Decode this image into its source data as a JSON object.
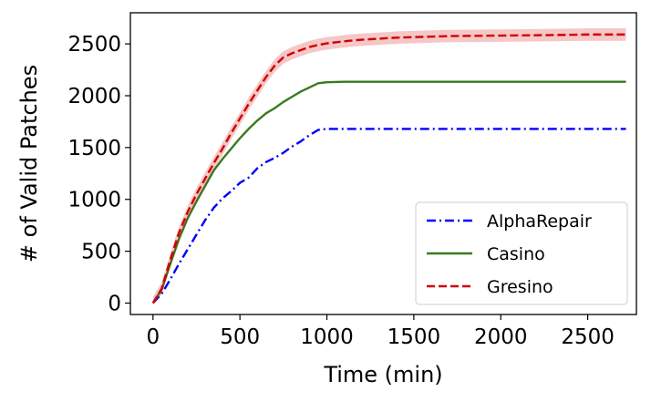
{
  "chart_data": {
    "type": "line",
    "xlabel": "Time (min)",
    "ylabel": "# of Valid Patches",
    "xlim": [
      -130,
      2780
    ],
    "ylim": [
      -110,
      2800
    ],
    "xticks": [
      0,
      500,
      1000,
      1500,
      2000,
      2500
    ],
    "yticks": [
      0,
      500,
      1000,
      1500,
      2000,
      2500
    ],
    "legend_position": "lower-right",
    "grid": false,
    "series": [
      {
        "name": "AlphaRepair",
        "color": "#0000ff",
        "linestyle": "dashdot",
        "x": [
          0,
          50,
          100,
          150,
          200,
          250,
          300,
          350,
          400,
          450,
          500,
          550,
          600,
          650,
          700,
          750,
          800,
          850,
          900,
          950,
          1000,
          1100,
          1200,
          1500,
          2000,
          2500,
          2720
        ],
        "y": [
          0,
          90,
          230,
          380,
          520,
          660,
          800,
          920,
          1010,
          1080,
          1160,
          1210,
          1300,
          1360,
          1400,
          1450,
          1510,
          1560,
          1620,
          1670,
          1680,
          1680,
          1680,
          1680,
          1680,
          1680,
          1680
        ]
      },
      {
        "name": "Casino",
        "color": "#3a7a1e",
        "linestyle": "solid",
        "x": [
          0,
          50,
          100,
          150,
          200,
          250,
          300,
          350,
          400,
          450,
          500,
          550,
          600,
          650,
          700,
          750,
          800,
          850,
          900,
          950,
          1000,
          1100,
          1200,
          1500,
          2000,
          2500,
          2720
        ],
        "y": [
          0,
          130,
          380,
          620,
          820,
          980,
          1130,
          1280,
          1390,
          1490,
          1590,
          1680,
          1760,
          1830,
          1880,
          1940,
          1990,
          2040,
          2080,
          2120,
          2130,
          2135,
          2135,
          2135,
          2135,
          2135,
          2135
        ]
      },
      {
        "name": "Gresino",
        "color": "#d00000",
        "linestyle": "dashed",
        "band": 60,
        "x": [
          0,
          50,
          100,
          150,
          200,
          250,
          300,
          350,
          400,
          450,
          500,
          550,
          600,
          650,
          700,
          750,
          800,
          850,
          900,
          950,
          1000,
          1100,
          1200,
          1300,
          1400,
          1500,
          1700,
          2000,
          2300,
          2500,
          2720
        ],
        "y": [
          0,
          140,
          420,
          680,
          880,
          1050,
          1200,
          1350,
          1490,
          1640,
          1780,
          1920,
          2050,
          2180,
          2290,
          2370,
          2410,
          2440,
          2470,
          2490,
          2505,
          2525,
          2540,
          2550,
          2560,
          2565,
          2575,
          2580,
          2585,
          2590,
          2590
        ]
      }
    ]
  }
}
